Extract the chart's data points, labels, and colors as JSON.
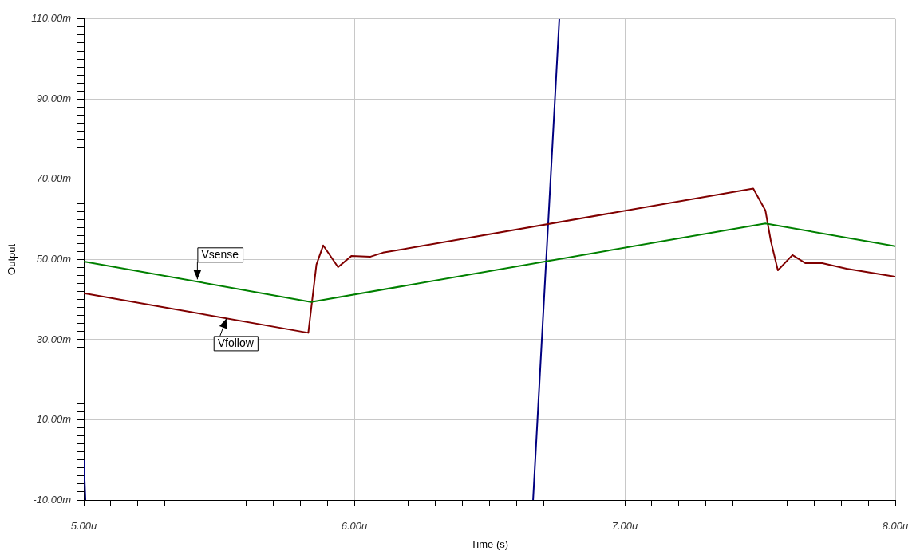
{
  "chart_data": {
    "type": "line",
    "xlabel": "Time (s)",
    "ylabel": "Output",
    "grid": true,
    "legend": false,
    "marker": "none",
    "line_style": "solid",
    "xlim": [
      5,
      8
    ],
    "ylim": [
      -10,
      110
    ],
    "xticks": [
      {
        "value": 5,
        "label": "5.00u"
      },
      {
        "value": 5.1,
        "label": null
      },
      {
        "value": 5.2,
        "label": null
      },
      {
        "value": 5.3,
        "label": null
      },
      {
        "value": 5.4,
        "label": null
      },
      {
        "value": 5.5,
        "label": null
      },
      {
        "value": 5.6,
        "label": null
      },
      {
        "value": 5.7,
        "label": null
      },
      {
        "value": 5.8,
        "label": null
      },
      {
        "value": 5.9,
        "label": null
      },
      {
        "value": 6,
        "label": "6.00u"
      },
      {
        "value": 6.1,
        "label": null
      },
      {
        "value": 6.2,
        "label": null
      },
      {
        "value": 6.3,
        "label": null
      },
      {
        "value": 6.4,
        "label": null
      },
      {
        "value": 6.5,
        "label": null
      },
      {
        "value": 6.6,
        "label": null
      },
      {
        "value": 6.7,
        "label": null
      },
      {
        "value": 6.8,
        "label": null
      },
      {
        "value": 6.9,
        "label": null
      },
      {
        "value": 7,
        "label": "7.00u"
      },
      {
        "value": 7.1,
        "label": null
      },
      {
        "value": 7.2,
        "label": null
      },
      {
        "value": 7.3,
        "label": null
      },
      {
        "value": 7.4,
        "label": null
      },
      {
        "value": 7.5,
        "label": null
      },
      {
        "value": 7.6,
        "label": null
      },
      {
        "value": 7.7,
        "label": null
      },
      {
        "value": 7.8,
        "label": null
      },
      {
        "value": 7.9,
        "label": null
      },
      {
        "value": 8,
        "label": "8.00u"
      }
    ],
    "yticks": [
      {
        "value": -10,
        "label": "-10.00m"
      },
      {
        "value": -8,
        "label": null
      },
      {
        "value": -6,
        "label": null
      },
      {
        "value": -4,
        "label": null
      },
      {
        "value": -2,
        "label": null
      },
      {
        "value": 0,
        "label": null
      },
      {
        "value": 2,
        "label": null
      },
      {
        "value": 4,
        "label": null
      },
      {
        "value": 6,
        "label": null
      },
      {
        "value": 8,
        "label": null
      },
      {
        "value": 10,
        "label": "10.00m"
      },
      {
        "value": 12,
        "label": null
      },
      {
        "value": 14,
        "label": null
      },
      {
        "value": 16,
        "label": null
      },
      {
        "value": 18,
        "label": null
      },
      {
        "value": 20,
        "label": null
      },
      {
        "value": 22,
        "label": null
      },
      {
        "value": 24,
        "label": null
      },
      {
        "value": 26,
        "label": null
      },
      {
        "value": 28,
        "label": null
      },
      {
        "value": 30,
        "label": "30.00m"
      },
      {
        "value": 32,
        "label": null
      },
      {
        "value": 34,
        "label": null
      },
      {
        "value": 36,
        "label": null
      },
      {
        "value": 38,
        "label": null
      },
      {
        "value": 40,
        "label": null
      },
      {
        "value": 42,
        "label": null
      },
      {
        "value": 44,
        "label": null
      },
      {
        "value": 46,
        "label": null
      },
      {
        "value": 48,
        "label": null
      },
      {
        "value": 50,
        "label": "50.00m"
      },
      {
        "value": 52,
        "label": null
      },
      {
        "value": 54,
        "label": null
      },
      {
        "value": 56,
        "label": null
      },
      {
        "value": 58,
        "label": null
      },
      {
        "value": 60,
        "label": null
      },
      {
        "value": 62,
        "label": null
      },
      {
        "value": 64,
        "label": null
      },
      {
        "value": 66,
        "label": null
      },
      {
        "value": 68,
        "label": null
      },
      {
        "value": 70,
        "label": "70.00m"
      },
      {
        "value": 72,
        "label": null
      },
      {
        "value": 74,
        "label": null
      },
      {
        "value": 76,
        "label": null
      },
      {
        "value": 78,
        "label": null
      },
      {
        "value": 80,
        "label": null
      },
      {
        "value": 82,
        "label": null
      },
      {
        "value": 84,
        "label": null
      },
      {
        "value": 86,
        "label": null
      },
      {
        "value": 88,
        "label": null
      },
      {
        "value": 90,
        "label": "90.00m"
      },
      {
        "value": 92,
        "label": null
      },
      {
        "value": 94,
        "label": null
      },
      {
        "value": 96,
        "label": null
      },
      {
        "value": 98,
        "label": null
      },
      {
        "value": 100,
        "label": null
      },
      {
        "value": 102,
        "label": null
      },
      {
        "value": 104,
        "label": null
      },
      {
        "value": 106,
        "label": null
      },
      {
        "value": 108,
        "label": null
      },
      {
        "value": 110,
        "label": "110.00m"
      }
    ],
    "series": [
      {
        "name": "Vsense",
        "color": "#008000",
        "x": [
          5,
          5.84,
          7.52,
          8
        ],
        "values": [
          49.5,
          39.4,
          59.0,
          53.3
        ]
      },
      {
        "name": "Vfollow",
        "color": "#800000",
        "x": [
          5,
          5.83,
          5.86,
          5.885,
          5.94,
          5.99,
          6.06,
          6.106,
          7.475,
          7.52,
          7.54,
          7.566,
          7.62,
          7.667,
          7.73,
          7.82,
          8
        ],
        "values": [
          41.6,
          31.7,
          48.7,
          53.5,
          48.1,
          50.9,
          50.7,
          51.7,
          67.7,
          62.2,
          54.6,
          47.3,
          51.1,
          49.1,
          49.1,
          47.7,
          45.7
        ]
      },
      {
        "color": "#000080",
        "x": [
          5,
          5.006,
          5.5,
          6.661,
          6.758
        ],
        "values": [
          0,
          -10,
          null,
          -10,
          110
        ]
      }
    ]
  }
}
